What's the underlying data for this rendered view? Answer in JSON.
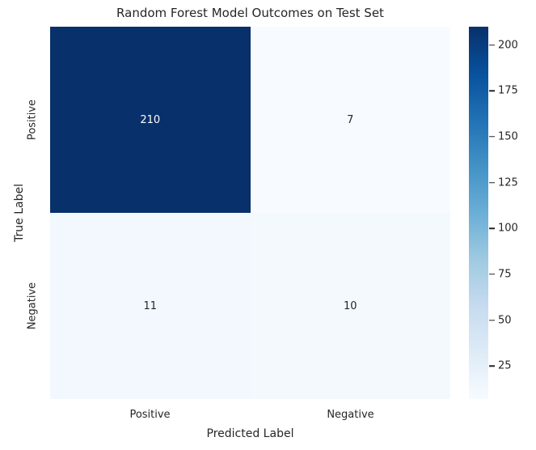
{
  "figure": {
    "background": "#ffffff",
    "text_color": "#262626"
  },
  "chart_data": {
    "type": "heatmap",
    "title": "Random Forest Model Outcomes on Test Set",
    "xlabel": "Predicted Label",
    "ylabel": "True Label",
    "x_tick_labels": [
      "Positive",
      "Negative"
    ],
    "y_tick_labels": [
      "Positive",
      "Negative"
    ],
    "rows": [
      {
        "true_label": "Positive",
        "values": [
          210,
          7
        ]
      },
      {
        "true_label": "Negative",
        "values": [
          11,
          10
        ]
      }
    ],
    "cells": [
      {
        "row": 0,
        "col": 0,
        "value": 210,
        "bg": "#08306b",
        "fg": "#ffffff"
      },
      {
        "row": 0,
        "col": 1,
        "value": 7,
        "bg": "#f7fbff",
        "fg": "#262626"
      },
      {
        "row": 1,
        "col": 0,
        "value": 11,
        "bg": "#f3f8fe",
        "fg": "#262626"
      },
      {
        "row": 1,
        "col": 1,
        "value": 10,
        "bg": "#f4f9fe",
        "fg": "#262626"
      }
    ],
    "colormap": "Blues",
    "colormap_stops": [
      "#f7fbff",
      "#deebf7",
      "#c6dbef",
      "#9ecae1",
      "#6baed6",
      "#4292c6",
      "#2171b5",
      "#08519c",
      "#08306b"
    ],
    "vmin": 7,
    "vmax": 210,
    "colorbar_ticks": [
      25,
      50,
      75,
      100,
      125,
      150,
      175,
      200
    ],
    "legend_position": "right",
    "grid": false
  }
}
